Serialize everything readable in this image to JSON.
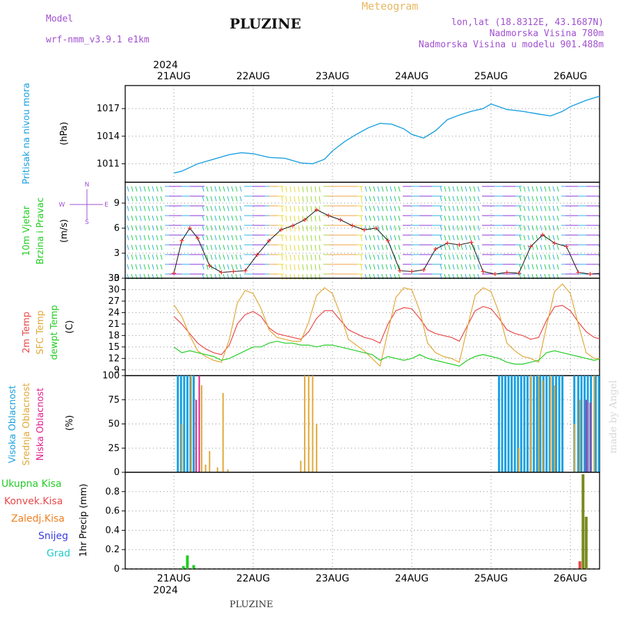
{
  "header": {
    "model_label": "Model",
    "model_name": "wrf-nmm_v3.9.1  e1km",
    "title": "PLUZINE",
    "meteogram_label": "Meteogram",
    "lonlat": "lon,lat (18.8312E, 43.1687N)",
    "elevation": "Nadmorska Visina 780m",
    "model_elevation": "Nadmorska Visina u modelu 901.488m",
    "footer_title": "PLUZINE",
    "credit": "made by Angel"
  },
  "colors": {
    "pressure": "#1aa0e0",
    "temp2m": "#e84848",
    "sfc_temp": "#e0a838",
    "dewpoint": "#22cc22",
    "high_cloud": "#1aa0e0",
    "mid_cloud": "#e0a838",
    "low_cloud": "#e0208c",
    "total_precip": "#22cc22",
    "conv_precip": "#e84848",
    "frozen_precip": "#f08020",
    "snow": "#3a3ae0",
    "graupel": "#22c8c8",
    "wind_label": "#22cc22",
    "model_text": "#a050d0",
    "meteogram_text": "#e8b860"
  },
  "time_axis": {
    "year": "2024",
    "day_labels": [
      "21AUG",
      "22AUG",
      "23AUG",
      "24AUG",
      "25AUG",
      "26AUG"
    ]
  },
  "chart_data": [
    {
      "type": "line",
      "panel": "pressure",
      "ylabel_main": "Pritisak na nivou mora",
      "ylabel_unit": "(hPa)",
      "ylim": [
        1009,
        1019.5
      ],
      "yticks": [
        1011,
        1014,
        1017
      ],
      "grid": true,
      "x_days": [
        0.0,
        0.1,
        0.3,
        0.5,
        0.7,
        0.85,
        1.0,
        1.2,
        1.4,
        1.6,
        1.75,
        1.9,
        2.0,
        2.15,
        2.3,
        2.45,
        2.6,
        2.75,
        2.9,
        3.0,
        3.15,
        3.3,
        3.45,
        3.6,
        3.75,
        3.9,
        4.0,
        4.2,
        4.4,
        4.6,
        4.75,
        4.9,
        5.0,
        5.2,
        5.35,
        5.5,
        5.6,
        5.75,
        5.9,
        6.0,
        6.15,
        6.3
      ],
      "series": [
        {
          "values": [
            1010.0,
            1010.2,
            1011.0,
            1011.5,
            1012.0,
            1012.2,
            1012.1,
            1011.7,
            1011.6,
            1011.1,
            1011.0,
            1011.5,
            1012.4,
            1013.4,
            1014.2,
            1014.9,
            1015.4,
            1015.3,
            1014.8,
            1014.2,
            1013.8,
            1014.6,
            1015.8,
            1016.3,
            1016.7,
            1017.0,
            1017.5,
            1016.9,
            1016.7,
            1016.4,
            1016.2,
            1016.7,
            1017.2,
            1017.9,
            1018.3,
            1018.4,
            1018.0,
            1017.5,
            1017.0,
            1016.7,
            1016.1,
            1015.8
          ]
        }
      ]
    },
    {
      "type": "line",
      "panel": "wind",
      "ylabel_main": "10m Vjetar",
      "ylabel_sub": "Brzina i Pravac",
      "ylabel_unit": "(m/s)",
      "compass": [
        "N",
        "W",
        "E",
        "S"
      ],
      "ylim": [
        0,
        11.5
      ],
      "yticks": [
        0,
        3,
        6,
        9
      ],
      "grid": true,
      "x_days": [
        0.0,
        0.1,
        0.2,
        0.3,
        0.45,
        0.6,
        0.75,
        0.9,
        1.05,
        1.2,
        1.35,
        1.5,
        1.65,
        1.8,
        1.95,
        2.1,
        2.25,
        2.4,
        2.55,
        2.7,
        2.85,
        3.0,
        3.15,
        3.3,
        3.45,
        3.6,
        3.75,
        3.9,
        4.05,
        4.2,
        4.35,
        4.5,
        4.65,
        4.8,
        4.95,
        5.1,
        5.25,
        5.4,
        5.55,
        5.7,
        5.85,
        6.0,
        6.15,
        6.3
      ],
      "series": [
        {
          "name": "speed",
          "values": [
            0.6,
            4.5,
            6.0,
            4.8,
            1.5,
            0.7,
            0.8,
            0.9,
            2.8,
            4.5,
            5.8,
            6.3,
            7.0,
            8.2,
            7.5,
            7.0,
            6.3,
            5.8,
            6.0,
            4.5,
            0.9,
            0.8,
            1.0,
            3.5,
            4.2,
            4.0,
            4.3,
            0.8,
            0.5,
            0.7,
            0.6,
            3.8,
            5.2,
            4.2,
            3.8,
            0.7,
            0.5,
            0.6,
            1.5,
            2.0,
            0.6,
            0.4,
            0.8,
            1.2
          ]
        }
      ]
    },
    {
      "type": "line",
      "panel": "temperature",
      "ylabel_lines": [
        "2m Temp",
        "SFC Temp",
        "dewpt Temp"
      ],
      "ylabel_unit": "(C)",
      "ylim": [
        7.5,
        33
      ],
      "yticks": [
        9,
        12,
        15,
        18,
        21,
        24,
        27,
        30,
        33
      ],
      "grid": true,
      "x_days": [
        0.0,
        0.1,
        0.2,
        0.3,
        0.4,
        0.5,
        0.6,
        0.7,
        0.8,
        0.9,
        1.0,
        1.1,
        1.2,
        1.3,
        1.4,
        1.5,
        1.6,
        1.7,
        1.8,
        1.9,
        2.0,
        2.1,
        2.2,
        2.3,
        2.4,
        2.5,
        2.6,
        2.7,
        2.8,
        2.9,
        3.0,
        3.1,
        3.2,
        3.3,
        3.4,
        3.5,
        3.6,
        3.7,
        3.8,
        3.9,
        4.0,
        4.1,
        4.2,
        4.3,
        4.4,
        4.5,
        4.6,
        4.7,
        4.8,
        4.9,
        5.0,
        5.1,
        5.2,
        5.3,
        5.4,
        5.5,
        5.6,
        5.7,
        5.8,
        5.9,
        6.0,
        6.1,
        6.2,
        6.3
      ],
      "series": [
        {
          "name": "2m Temp",
          "values": [
            23.0,
            21.0,
            18.5,
            16.0,
            14.5,
            13.5,
            13.0,
            15.5,
            21.0,
            23.5,
            24.3,
            23.0,
            20.0,
            18.5,
            18.0,
            17.5,
            17.0,
            19.0,
            22.5,
            24.5,
            24.5,
            22.0,
            19.5,
            18.5,
            17.5,
            17.0,
            16.0,
            21.0,
            24.5,
            25.3,
            25.0,
            22.5,
            19.5,
            18.5,
            18.0,
            17.5,
            16.5,
            20.5,
            24.5,
            25.6,
            25.0,
            22.5,
            19.5,
            18.5,
            18.0,
            17.0,
            17.5,
            22.0,
            25.5,
            25.9,
            24.5,
            21.5,
            19.0,
            17.5,
            17.0,
            18.0,
            21.0,
            24.5,
            25.5,
            25.2,
            24.0,
            21.0,
            18.5,
            17.0
          ]
        },
        {
          "name": "SFC Temp",
          "values": [
            26.0,
            23.0,
            18.0,
            14.0,
            12.5,
            11.5,
            11.0,
            17.0,
            26.5,
            29.8,
            29.0,
            25.0,
            19.5,
            17.5,
            17.0,
            16.5,
            16.5,
            21.5,
            28.5,
            30.5,
            29.0,
            23.5,
            17.0,
            15.5,
            14.0,
            12.0,
            10.0,
            19.0,
            28.0,
            30.5,
            30.0,
            24.5,
            16.0,
            13.5,
            12.5,
            12.0,
            11.0,
            20.0,
            28.5,
            30.5,
            29.5,
            24.0,
            16.0,
            14.0,
            12.5,
            12.0,
            11.0,
            20.5,
            29.5,
            31.5,
            29.0,
            21.0,
            13.5,
            12.0,
            12.0,
            11.5,
            12.5,
            22.0,
            30.0,
            31.5,
            30.0,
            26.0,
            19.0,
            14.0
          ]
        },
        {
          "name": "dewpt Temp",
          "values": [
            15.0,
            13.5,
            14.0,
            13.5,
            13.0,
            12.5,
            11.5,
            12.0,
            13.0,
            14.0,
            15.0,
            15.0,
            16.0,
            16.5,
            16.0,
            16.0,
            15.5,
            15.5,
            15.0,
            15.5,
            15.5,
            15.0,
            14.5,
            14.0,
            13.5,
            13.0,
            11.5,
            12.5,
            12.0,
            11.5,
            12.0,
            13.0,
            12.0,
            11.5,
            11.0,
            10.5,
            10.0,
            11.5,
            12.5,
            13.0,
            12.5,
            12.0,
            11.0,
            10.5,
            10.5,
            11.0,
            11.5,
            13.5,
            14.0,
            13.5,
            13.0,
            12.5,
            12.0,
            11.5,
            12.0,
            12.0,
            12.5,
            12.5,
            12.0,
            12.0,
            13.5,
            14.5,
            14.0,
            13.5
          ]
        }
      ]
    },
    {
      "type": "bar",
      "panel": "clouds",
      "ylabel_lines": [
        "Visoka Oblacnost",
        "Srednja Oblacnost",
        "Niska  Oblacnost"
      ],
      "ylabel_unit": "(%)",
      "ylim": [
        0,
        100
      ],
      "yticks": [
        0,
        25,
        50,
        75,
        100
      ],
      "grid": true,
      "series": [
        {
          "name": "Visoka Oblacnost",
          "x_days": [
            0.05,
            0.09,
            0.13,
            0.17,
            0.21,
            0.25,
            4.1,
            4.14,
            4.18,
            4.22,
            4.26,
            4.3,
            4.34,
            4.38,
            4.42,
            4.46,
            4.5,
            4.54,
            4.58,
            4.62,
            4.66,
            4.7,
            4.74,
            4.78,
            4.82,
            4.86,
            4.9,
            5.05,
            5.1,
            5.14,
            5.18,
            5.22,
            5.26,
            5.32,
            5.36,
            5.4,
            5.44,
            5.48
          ],
          "values": [
            100,
            100,
            100,
            100,
            100,
            100,
            100,
            100,
            100,
            100,
            100,
            100,
            100,
            100,
            100,
            100,
            100,
            100,
            100,
            100,
            100,
            100,
            100,
            100,
            100,
            100,
            100,
            100,
            100,
            100,
            100,
            100,
            100,
            100,
            100,
            100,
            100,
            100
          ]
        },
        {
          "name": "Srednja Oblacnost",
          "x_days": [
            0.1,
            0.22,
            0.32,
            0.35,
            0.4,
            0.45,
            0.55,
            0.62,
            0.68,
            1.6,
            1.65,
            1.7,
            1.75,
            1.8,
            4.35,
            4.5,
            4.6,
            4.65,
            4.75,
            4.8,
            5.05,
            5.12,
            5.3,
            5.5,
            5.55,
            5.6
          ],
          "values": [
            50,
            100,
            90,
            90,
            8,
            22,
            5,
            82,
            3,
            12,
            100,
            100,
            100,
            50,
            25,
            100,
            100,
            95,
            100,
            90,
            50,
            75,
            100,
            95,
            100,
            95
          ]
        },
        {
          "name": "Niska  Oblacnost",
          "x_days": [
            0.28,
            0.32,
            5.2,
            5.25,
            5.38,
            5.42
          ],
          "values": [
            75,
            100,
            75,
            72,
            70,
            90
          ]
        }
      ]
    },
    {
      "type": "bar",
      "panel": "precipitation",
      "legend": [
        "Ukupna  Kisa",
        "Konvek.Kisa",
        "Zaledj.Kisa",
        "Snijeg",
        "Grad"
      ],
      "ylabel_main": "1hr Precip (mm)",
      "ylim": [
        0,
        1.0
      ],
      "yticks": [
        0,
        0.2,
        0.4,
        0.6,
        0.8
      ],
      "grid": true,
      "series": [
        {
          "name": "Ukupna  Kisa",
          "x_days": [
            0.12,
            0.17,
            0.25,
            5.12,
            5.16,
            5.2
          ],
          "values": [
            0.03,
            0.14,
            0.04,
            0.08,
            0.98,
            0.54
          ]
        }
      ]
    }
  ]
}
